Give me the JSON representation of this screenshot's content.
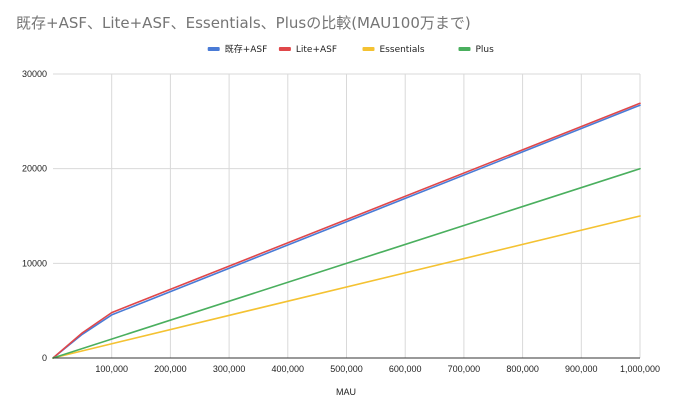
{
  "chart_data": {
    "type": "line",
    "title": "既存+ASF、Lite+ASF、Essentials、Plusの比較(MAU100万まで)",
    "xlabel": "MAU",
    "ylabel": "",
    "xlim": [
      0,
      1000000
    ],
    "ylim": [
      0,
      30000
    ],
    "x_ticks": [
      100000,
      200000,
      300000,
      400000,
      500000,
      600000,
      700000,
      800000,
      900000,
      1000000
    ],
    "x_tick_labels": [
      "100,000",
      "200,000",
      "300,000",
      "400,000",
      "500,000",
      "600,000",
      "700,000",
      "800,000",
      "900,000",
      "1,000,000"
    ],
    "y_ticks": [
      0,
      10000,
      20000,
      30000
    ],
    "y_tick_labels": [
      "0",
      "10000",
      "20000",
      "30000"
    ],
    "grid": true,
    "legend_position": "top",
    "series": [
      {
        "name": "既存+ASF",
        "color": "#4a7bd6",
        "x": [
          0,
          50000,
          100000,
          1000000
        ],
        "y": [
          0,
          2500,
          4550,
          26700
        ]
      },
      {
        "name": "Lite+ASF",
        "color": "#e0474a",
        "x": [
          0,
          50000,
          100000,
          1000000
        ],
        "y": [
          0,
          2650,
          4800,
          26900
        ]
      },
      {
        "name": "Essentials",
        "color": "#f4c232",
        "x": [
          0,
          1000000
        ],
        "y": [
          0,
          15000
        ]
      },
      {
        "name": "Plus",
        "color": "#4aaf5e",
        "x": [
          0,
          1000000
        ],
        "y": [
          0,
          20000
        ]
      }
    ]
  }
}
